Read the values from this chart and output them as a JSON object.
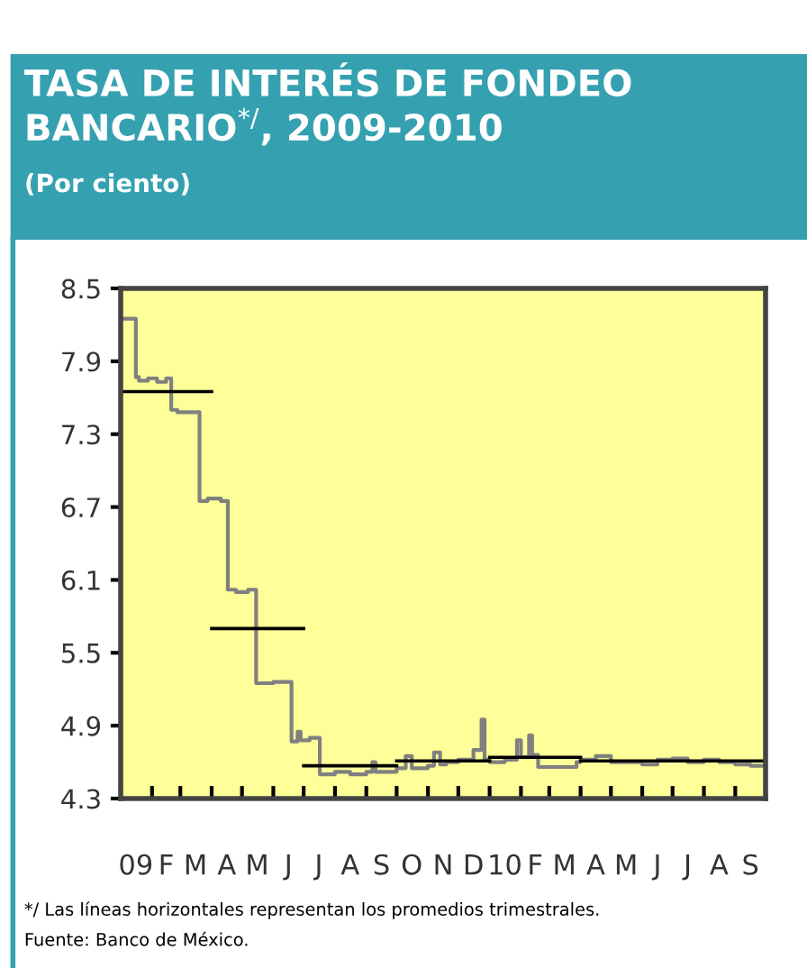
{
  "chart_data": {
    "type": "line",
    "title": "TASA DE INTERÉS DE FONDEO BANCARIO$^{*/}$, 2009-2010",
    "subtitle": "(Por ciento)",
    "annotations": [
      "*/ Las líneas horizontales representan los promedios trimestrales.",
      "Fuente: Banco de México."
    ],
    "series": [
      {
        "type": "step",
        "color": "#808080",
        "line_style": "solid",
        "x": [
          "2009-01-01",
          "2009-01-16",
          "2009-01-19",
          "2009-01-28",
          "2009-02-06",
          "2009-02-15",
          "2009-02-20",
          "2009-02-26",
          "2009-03-20",
          "2009-03-28",
          "2009-04-10",
          "2009-04-17",
          "2009-04-25",
          "2009-05-07",
          "2009-05-15",
          "2009-06-01",
          "2009-06-19",
          "2009-06-25",
          "2009-06-28",
          "2009-07-07",
          "2009-07-17",
          "2009-08-01",
          "2009-08-16",
          "2009-09-01",
          "2009-09-07",
          "2009-09-10",
          "2009-10-01",
          "2009-10-10",
          "2009-10-16",
          "2009-11-01",
          "2009-11-07",
          "2009-11-13",
          "2009-11-19",
          "2009-12-01",
          "2009-12-16",
          "2009-12-24",
          "2009-12-27",
          "2010-01-01",
          "2010-01-16",
          "2010-01-28",
          "2010-02-01",
          "2010-02-09",
          "2010-02-12",
          "2010-02-18",
          "2010-03-01",
          "2010-03-28",
          "2010-04-01",
          "2010-04-16",
          "2010-05-01",
          "2010-05-16",
          "2010-06-01",
          "2010-06-16",
          "2010-07-01",
          "2010-07-16",
          "2010-08-01",
          "2010-08-16",
          "2010-09-01",
          "2010-09-16",
          "2010-10-01"
        ],
        "values": [
          8.25,
          7.77,
          7.74,
          7.76,
          7.73,
          7.76,
          7.5,
          7.48,
          6.75,
          6.77,
          6.75,
          6.02,
          6.0,
          6.02,
          5.25,
          5.26,
          4.77,
          4.85,
          4.78,
          4.8,
          4.5,
          4.52,
          4.5,
          4.52,
          4.6,
          4.52,
          4.55,
          4.65,
          4.55,
          4.57,
          4.68,
          4.58,
          4.6,
          4.62,
          4.7,
          4.95,
          4.62,
          4.6,
          4.62,
          4.78,
          4.64,
          4.82,
          4.66,
          4.56,
          4.56,
          4.6,
          4.62,
          4.65,
          4.6,
          4.6,
          4.58,
          4.62,
          4.63,
          4.6,
          4.62,
          4.6,
          4.58,
          4.57,
          4.57
        ]
      },
      {
        "color": "#000000",
        "x": [
          "2009-01-01",
          "2009-04-01"
        ],
        "values": [
          7.65,
          7.65
        ]
      },
      {
        "color": "#000000",
        "x": [
          "2009-04-01",
          "2009-07-01"
        ],
        "values": [
          5.7,
          5.7
        ]
      },
      {
        "color": "#000000",
        "x": [
          "2009-07-01",
          "2009-10-01"
        ],
        "values": [
          4.57,
          4.57
        ]
      },
      {
        "color": "#000000",
        "x": [
          "2009-10-01",
          "2010-01-01"
        ],
        "values": [
          4.61,
          4.61
        ]
      },
      {
        "color": "#000000",
        "x": [
          "2010-01-01",
          "2010-04-01"
        ],
        "values": [
          4.64,
          4.64
        ]
      },
      {
        "color": "#000000",
        "x": [
          "2010-04-01",
          "2010-10-01"
        ],
        "values": [
          4.61,
          4.61
        ]
      }
    ],
    "xlim": [
      "2009-01-01",
      "2010-10-01"
    ],
    "xticks": [
      {
        "value": "2009-01-01",
        "label": null
      },
      {
        "value": "2009-02-01",
        "label": null
      },
      {
        "value": "2009-03-01",
        "label": null
      },
      {
        "value": "2009-04-01",
        "label": null
      },
      {
        "value": "2009-05-01",
        "label": null
      },
      {
        "value": "2009-06-01",
        "label": null
      },
      {
        "value": "2009-07-01",
        "label": null
      },
      {
        "value": "2009-08-01",
        "label": null
      },
      {
        "value": "2009-09-01",
        "label": null
      },
      {
        "value": "2009-10-01",
        "label": null
      },
      {
        "value": "2009-11-01",
        "label": null
      },
      {
        "value": "2009-12-01",
        "label": null
      },
      {
        "value": "2010-01-01",
        "label": null
      },
      {
        "value": "2010-02-01",
        "label": null
      },
      {
        "value": "2010-03-01",
        "label": null
      },
      {
        "value": "2010-04-01",
        "label": null
      },
      {
        "value": "2010-05-01",
        "label": null
      },
      {
        "value": "2010-06-01",
        "label": null
      },
      {
        "value": "2010-07-01",
        "label": null
      },
      {
        "value": "2010-08-01",
        "label": null
      },
      {
        "value": "2010-09-01",
        "label": null
      },
      {
        "value": "2010-10-01",
        "label": null
      },
      {
        "value": "2009-01-16",
        "label": "09"
      },
      {
        "value": "2009-02-15",
        "label": "F"
      },
      {
        "value": "2009-03-16",
        "label": "M"
      },
      {
        "value": "2009-04-16",
        "label": "A"
      },
      {
        "value": "2009-05-16",
        "label": "M"
      },
      {
        "value": "2009-06-16",
        "label": "J"
      },
      {
        "value": "2009-07-16",
        "label": "J"
      },
      {
        "value": "2009-08-16",
        "label": "A"
      },
      {
        "value": "2009-09-16",
        "label": "S"
      },
      {
        "value": "2009-10-16",
        "label": "O"
      },
      {
        "value": "2009-11-16",
        "label": "N"
      },
      {
        "value": "2009-12-16",
        "label": "D"
      },
      {
        "value": "2010-01-16",
        "label": "10"
      },
      {
        "value": "2010-02-15",
        "label": "F"
      },
      {
        "value": "2010-03-16",
        "label": "M"
      },
      {
        "value": "2010-04-16",
        "label": "A"
      },
      {
        "value": "2010-05-16",
        "label": "M"
      },
      {
        "value": "2010-06-16",
        "label": "J"
      },
      {
        "value": "2010-07-16",
        "label": "J"
      },
      {
        "value": "2010-08-16",
        "label": "A"
      },
      {
        "value": "2010-09-16",
        "label": "S"
      }
    ],
    "ylim": [
      4.3,
      8.5
    ],
    "yticks": [
      4.3,
      4.9,
      5.5,
      6.1,
      6.7,
      7.3,
      7.9,
      8.5
    ],
    "grid": false,
    "legend": false,
    "marker": "none"
  }
}
